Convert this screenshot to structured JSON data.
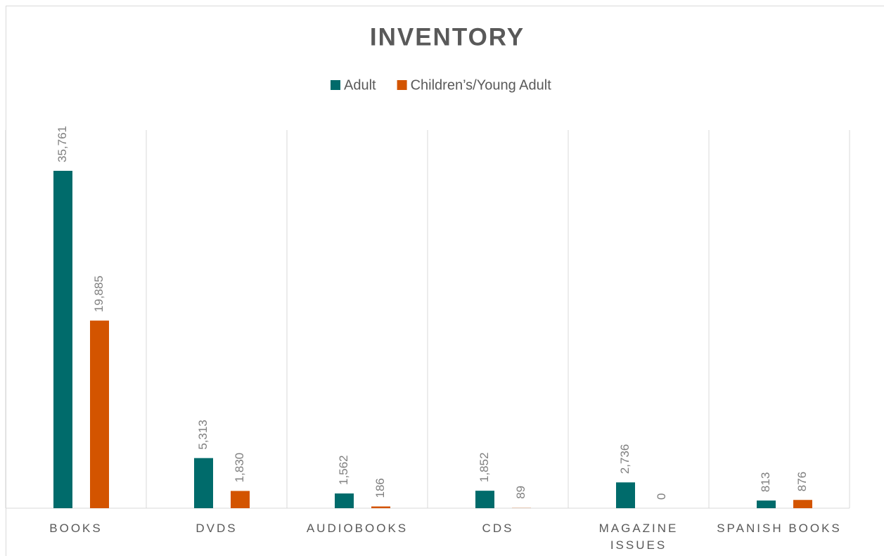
{
  "chart_data": {
    "type": "bar",
    "title": "INVENTORY",
    "categories": [
      "BOOKS",
      "DVDS",
      "AUDIOBOOKS",
      "CDS",
      "MAGAZINE ISSUES",
      "SPANISH BOOKS"
    ],
    "series": [
      {
        "name": "Adult",
        "color": "#006b6b",
        "values": [
          35761,
          5313,
          1562,
          1852,
          2736,
          813
        ],
        "value_labels": [
          "35,761",
          "5,313",
          "1,562",
          "1,852",
          "2,736",
          "813"
        ]
      },
      {
        "name": "Children’s/Young Adult",
        "color": "#d35400",
        "values": [
          19885,
          1830,
          186,
          89,
          0,
          876
        ],
        "value_labels": [
          "19,885",
          "1,830",
          "186",
          "89",
          "0",
          "876"
        ]
      }
    ],
    "grid": true,
    "legend": "top"
  }
}
